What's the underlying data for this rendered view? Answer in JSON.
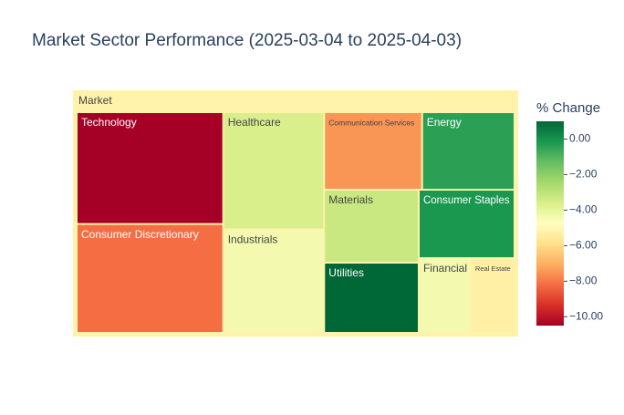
{
  "chart_data": {
    "type": "treemap",
    "title": "Market Sector Performance (2025-03-04 to 2025-04-03)",
    "root": "Market",
    "labels": [
      "Technology",
      "Consumer Discretionary",
      "Healthcare",
      "Industrials",
      "Communication Services",
      "Energy",
      "Materials",
      "Utilities",
      "Consumer Staples",
      "Financial",
      "Real Estate"
    ],
    "values": [
      19.0,
      18.5,
      13.7,
      12.1,
      8.8,
      8.3,
      8.0,
      7.7,
      7.6,
      4.5,
      3.8
    ],
    "changes": [
      -10.5,
      -8.2,
      -3.6,
      -4.4,
      -7.5,
      -0.4,
      -3.25,
      1.0,
      -0.15,
      -4.4,
      -5.3
    ],
    "colorbar_title": "% Change",
    "colorscale": [
      "#a50026",
      "#d73027",
      "#f46d43",
      "#fdae61",
      "#fee08b",
      "#ffffbf",
      "#d9ef8b",
      "#a6d96a",
      "#66bd63",
      "#1a9850",
      "#006837"
    ],
    "clim": [
      -10.5,
      1.0
    ],
    "cticks": [
      {
        "value": 0,
        "label": "0.00"
      },
      {
        "value": -2,
        "label": "−2.00"
      },
      {
        "value": -4,
        "label": "−4.00"
      },
      {
        "value": -6,
        "label": "−6.00"
      },
      {
        "value": -8,
        "label": "−8.00"
      },
      {
        "value": -10,
        "label": "−10.00"
      }
    ]
  }
}
